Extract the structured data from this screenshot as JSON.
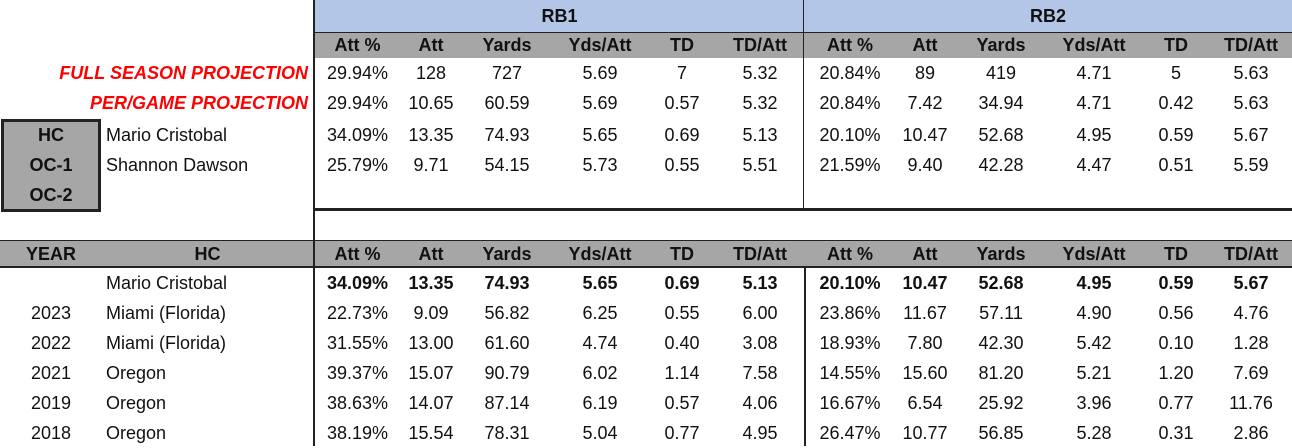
{
  "groups": {
    "rb1": "RB1",
    "rb2": "RB2"
  },
  "col_headers": [
    "Att %",
    "Att",
    "Yards",
    "Yds/Att",
    "TD",
    "TD/Att",
    "Att %",
    "Att",
    "Yards",
    "Yds/Att",
    "TD",
    "TD/Att"
  ],
  "projections": {
    "full_label": "FULL SEASON PROJECTION",
    "full": [
      "29.94%",
      "128",
      "727",
      "5.69",
      "7",
      "5.32",
      "20.84%",
      "89",
      "419",
      "4.71",
      "5",
      "5.63"
    ],
    "pergame_label": "PER/GAME PROJECTION",
    "pergame": [
      "29.94%",
      "10.65",
      "60.59",
      "5.69",
      "0.57",
      "5.32",
      "20.84%",
      "7.42",
      "34.94",
      "4.71",
      "0.42",
      "5.63"
    ]
  },
  "coaches": {
    "roles": [
      "HC",
      "OC-1",
      "OC-2"
    ],
    "names": [
      "Mario Cristobal",
      "Shannon Dawson",
      ""
    ],
    "hc": [
      "34.09%",
      "13.35",
      "74.93",
      "5.65",
      "0.69",
      "5.13",
      "20.10%",
      "10.47",
      "52.68",
      "4.95",
      "0.59",
      "5.67"
    ],
    "oc1": [
      "25.79%",
      "9.71",
      "54.15",
      "5.73",
      "0.55",
      "5.51",
      "21.59%",
      "9.40",
      "42.28",
      "4.47",
      "0.51",
      "5.59"
    ]
  },
  "history": {
    "year_header": "YEAR",
    "hc_header": "HC",
    "summary_name": "Mario Cristobal",
    "summary": [
      "34.09%",
      "13.35",
      "74.93",
      "5.65",
      "0.69",
      "5.13",
      "20.10%",
      "10.47",
      "52.68",
      "4.95",
      "0.59",
      "5.67"
    ],
    "rows": [
      {
        "year": "2023",
        "team": "Miami (Florida)",
        "vals": [
          "22.73%",
          "9.09",
          "56.82",
          "6.25",
          "0.55",
          "6.00",
          "23.86%",
          "11.67",
          "57.11",
          "4.90",
          "0.56",
          "4.76"
        ]
      },
      {
        "year": "2022",
        "team": "Miami (Florida)",
        "vals": [
          "31.55%",
          "13.00",
          "61.60",
          "4.74",
          "0.40",
          "3.08",
          "18.93%",
          "7.80",
          "42.30",
          "5.42",
          "0.10",
          "1.28"
        ]
      },
      {
        "year": "2021",
        "team": "Oregon",
        "vals": [
          "39.37%",
          "15.07",
          "90.79",
          "6.02",
          "1.14",
          "7.58",
          "14.55%",
          "15.60",
          "81.20",
          "5.21",
          "1.20",
          "7.69"
        ]
      },
      {
        "year": "2019",
        "team": "Oregon",
        "vals": [
          "38.63%",
          "14.07",
          "87.14",
          "6.19",
          "0.57",
          "4.06",
          "16.67%",
          "6.54",
          "25.92",
          "3.96",
          "0.77",
          "11.76"
        ]
      },
      {
        "year": "2018",
        "team": "Oregon",
        "vals": [
          "38.19%",
          "15.54",
          "78.31",
          "5.04",
          "0.77",
          "4.95",
          "26.47%",
          "10.77",
          "56.85",
          "5.28",
          "0.31",
          "2.86"
        ]
      }
    ]
  },
  "colors": {
    "header_blue": "#b4c6e7",
    "header_gray": "#a6a6a6",
    "projection_red": "#ff0000"
  }
}
